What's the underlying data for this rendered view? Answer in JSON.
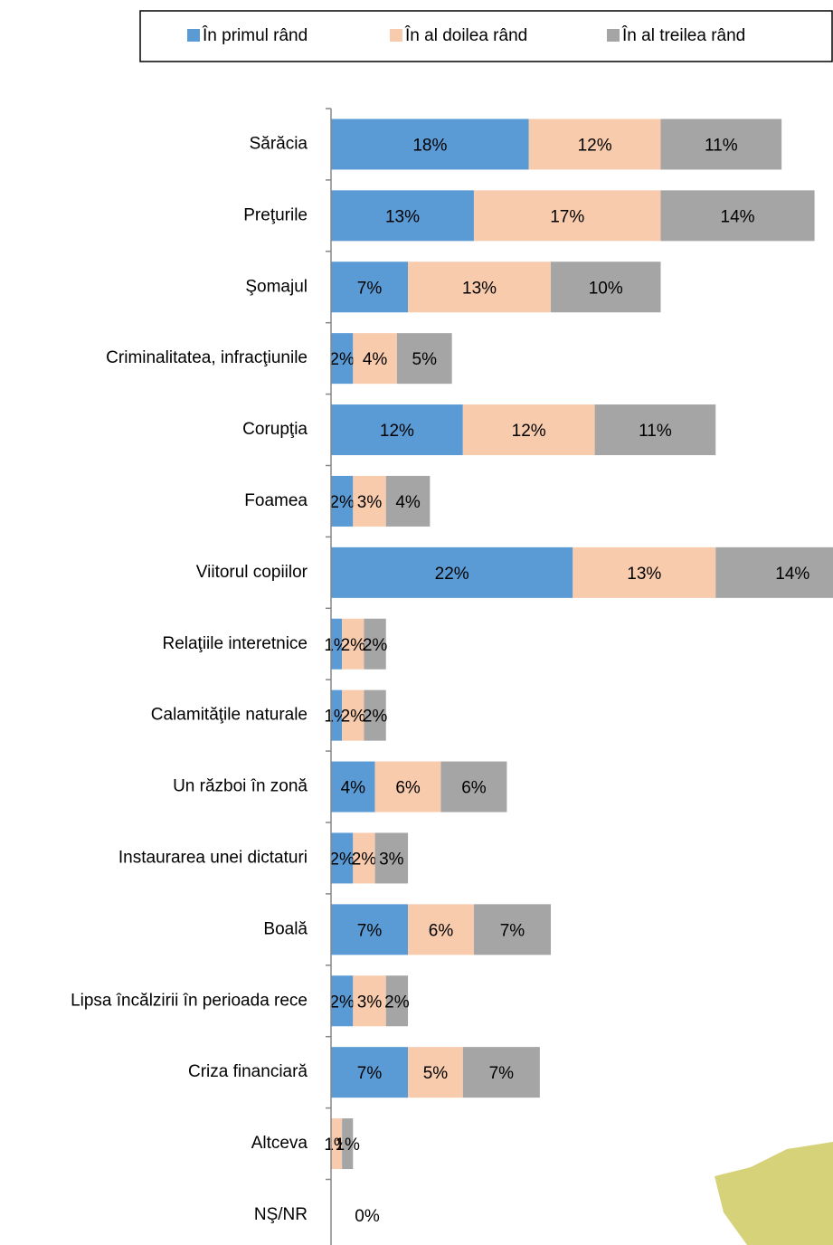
{
  "chart_data": {
    "type": "stacked_bar_horizontal",
    "categories": [
      "Sărăcia",
      "Preţurile",
      "Şomajul",
      "Criminalitatea, infracţiunile",
      "Corupţia",
      "Foamea",
      "Viitorul copiilor",
      "Relaţiile interetnice",
      "Calamităţile naturale",
      "Un război în zonă",
      "Instaurarea unei dictaturi",
      "Boală",
      "Lipsa încălzirii în perioada rece",
      "Criza financiară",
      "Altceva",
      "NŞ/NR"
    ],
    "series": [
      {
        "name": "În primul rând",
        "color": "#5b9bd5",
        "values": [
          18,
          13,
          7,
          2,
          12,
          2,
          22,
          1,
          1,
          4,
          2,
          7,
          2,
          7,
          0,
          0
        ],
        "value_labels": [
          "18%",
          "13%",
          "7%",
          "2%",
          "12%",
          "2%",
          "22%",
          "1%",
          "1%",
          "4%",
          "2%",
          "7%",
          "2%",
          "7%",
          null,
          "0%"
        ]
      },
      {
        "name": "În al doilea rând",
        "color": "#f8cbad",
        "values": [
          12,
          17,
          13,
          4,
          12,
          3,
          13,
          2,
          2,
          6,
          2,
          6,
          3,
          5,
          1,
          0
        ],
        "value_labels": [
          "12%",
          "17%",
          "13%",
          "4%",
          "12%",
          "3%",
          "13%",
          "2%",
          "2%",
          "6%",
          "2%",
          "6%",
          "3%",
          "5%",
          "1%",
          null
        ]
      },
      {
        "name": "În al treilea rând",
        "color": "#a5a5a5",
        "values": [
          11,
          14,
          10,
          5,
          11,
          4,
          14,
          2,
          2,
          6,
          3,
          7,
          2,
          7,
          1,
          0
        ],
        "value_labels": [
          "11%",
          "14%",
          "10%",
          "5%",
          "11%",
          "4%",
          "14%",
          "2%",
          "2%",
          "6%",
          "3%",
          "7%",
          "2%",
          "7%",
          "1%",
          null
        ]
      }
    ],
    "legend": "top"
  }
}
